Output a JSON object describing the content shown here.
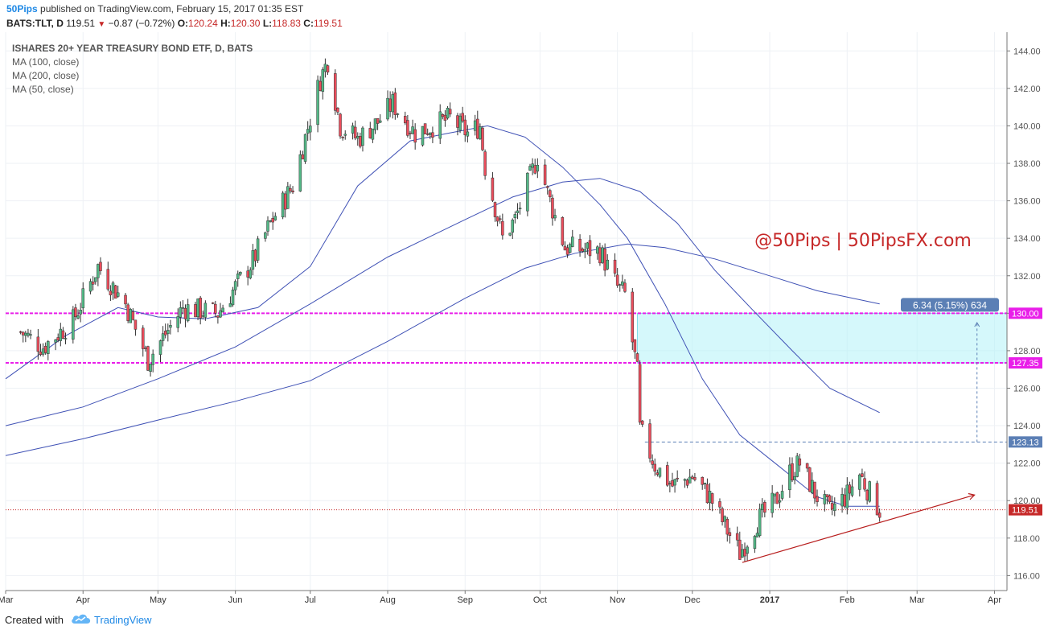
{
  "header": {
    "publisher": "50Pips",
    "published_text": " published on TradingView.com, February 15, 2017 01:35 EST",
    "symbol": "BATS:TLT, D",
    "last": "119.51",
    "change": "−0.87 (−0.72%)",
    "o_label": "O:",
    "o_value": "120.24",
    "h_label": "H:",
    "h_value": "120.30",
    "l_label": "L:",
    "l_value": "118.83",
    "c_label": "C:",
    "c_value": "119.51"
  },
  "legend": {
    "title": "ISHARES 20+ YEAR TREASURY BOND ETF, D, BATS",
    "indicators": [
      "MA (100, close)",
      "MA (200, close)",
      "MA (50, close)"
    ]
  },
  "watermark": "@50Pips | 50PipsFX.com",
  "footer": {
    "created_with": "Created with",
    "brand": "TradingView"
  },
  "colors": {
    "up": "#53b987",
    "down": "#eb4d5c",
    "ma": "#3f51b5",
    "level": "#e91ee9",
    "target_box": "#b2f2f7",
    "trendline": "#b71c1c",
    "current_price": "#c62828",
    "measure_label": "#5b7fb5",
    "watermark": "#c62828"
  },
  "chart_data": {
    "type": "candlestick",
    "symbol": "BATS:TLT",
    "timeframe": "D",
    "x_tick_labels": [
      "Mar",
      "Apr",
      "May",
      "Jun",
      "Jul",
      "Aug",
      "Sep",
      "Oct",
      "Nov",
      "Dec",
      "2017",
      "Feb",
      "Mar",
      "Apr"
    ],
    "y_tick_labels": [
      "116.00",
      "118.00",
      "120.00",
      "122.00",
      "124.00",
      "126.00",
      "128.00",
      "130.00",
      "132.00",
      "134.00",
      "136.00",
      "138.00",
      "140.00",
      "142.00",
      "144.00"
    ],
    "ylim": [
      115.2,
      145.0
    ],
    "price_path": [
      [
        "2016-03-07",
        129.0
      ],
      [
        "2016-03-16",
        128.2
      ],
      [
        "2016-03-28",
        129.6
      ],
      [
        "2016-04-07",
        132.5
      ],
      [
        "2016-04-18",
        130.5
      ],
      [
        "2016-04-27",
        127.5
      ],
      [
        "2016-05-11",
        130.3
      ],
      [
        "2016-05-25",
        130.0
      ],
      [
        "2016-06-08",
        132.8
      ],
      [
        "2016-06-15",
        134.8
      ],
      [
        "2016-06-24",
        136.8
      ],
      [
        "2016-07-05",
        142.5
      ],
      [
        "2016-07-08",
        143.5
      ],
      [
        "2016-07-13",
        140.0
      ],
      [
        "2016-07-20",
        139.3
      ],
      [
        "2016-07-28",
        140.2
      ],
      [
        "2016-08-03",
        141.2
      ],
      [
        "2016-08-12",
        139.6
      ],
      [
        "2016-08-19",
        140.0
      ],
      [
        "2016-08-26",
        140.4
      ],
      [
        "2016-09-02",
        139.6
      ],
      [
        "2016-09-07",
        140.0
      ],
      [
        "2016-09-09",
        137.8
      ],
      [
        "2016-09-13",
        135.7
      ],
      [
        "2016-09-16",
        134.0
      ],
      [
        "2016-09-21",
        135.0
      ],
      [
        "2016-09-28",
        137.6
      ],
      [
        "2016-09-30",
        138.4
      ],
      [
        "2016-10-04",
        136.4
      ],
      [
        "2016-10-11",
        133.5
      ],
      [
        "2016-10-18",
        133.4
      ],
      [
        "2016-10-25",
        133.3
      ],
      [
        "2016-11-01",
        131.4
      ],
      [
        "2016-11-04",
        131.0
      ],
      [
        "2016-11-09",
        126.8
      ],
      [
        "2016-11-10",
        123.8
      ],
      [
        "2016-11-16",
        121.9
      ],
      [
        "2016-11-23",
        120.8
      ],
      [
        "2016-12-01",
        121.3
      ],
      [
        "2016-12-08",
        120.2
      ],
      [
        "2016-12-15",
        118.4
      ],
      [
        "2016-12-20",
        117.2
      ],
      [
        "2016-12-27",
        118.9
      ],
      [
        "2017-01-03",
        119.9
      ],
      [
        "2017-01-09",
        121.5
      ],
      [
        "2017-01-13",
        122.0
      ],
      [
        "2017-01-19",
        120.4
      ],
      [
        "2017-01-25",
        119.4
      ],
      [
        "2017-02-01",
        120.3
      ],
      [
        "2017-02-06",
        121.4
      ],
      [
        "2017-02-10",
        120.4
      ],
      [
        "2017-02-14",
        119.51
      ]
    ],
    "moving_averages": [
      {
        "name": "MA (100, close)",
        "points": [
          [
            "2016-03-01",
            124.0
          ],
          [
            "2016-04-01",
            125.0
          ],
          [
            "2016-05-01",
            126.5
          ],
          [
            "2016-06-01",
            128.2
          ],
          [
            "2016-07-01",
            130.5
          ],
          [
            "2016-08-01",
            133.0
          ],
          [
            "2016-09-01",
            135.0
          ],
          [
            "2016-09-20",
            136.2
          ],
          [
            "2016-10-10",
            137.0
          ],
          [
            "2016-10-25",
            137.2
          ],
          [
            "2016-11-10",
            136.5
          ],
          [
            "2016-11-25",
            134.8
          ],
          [
            "2016-12-10",
            132.3
          ],
          [
            "2016-12-25",
            130.2
          ],
          [
            "2017-01-10",
            128.0
          ],
          [
            "2017-01-25",
            126.0
          ],
          [
            "2017-02-14",
            124.7
          ]
        ]
      },
      {
        "name": "MA (200, close)",
        "points": [
          [
            "2016-03-01",
            122.4
          ],
          [
            "2016-04-01",
            123.3
          ],
          [
            "2016-05-01",
            124.3
          ],
          [
            "2016-06-01",
            125.3
          ],
          [
            "2016-07-01",
            126.4
          ],
          [
            "2016-08-01",
            128.5
          ],
          [
            "2016-09-01",
            130.8
          ],
          [
            "2016-09-25",
            132.4
          ],
          [
            "2016-10-15",
            133.2
          ],
          [
            "2016-11-05",
            133.7
          ],
          [
            "2016-11-20",
            133.5
          ],
          [
            "2016-12-10",
            132.9
          ],
          [
            "2017-01-01",
            132.0
          ],
          [
            "2017-01-20",
            131.2
          ],
          [
            "2017-02-14",
            130.5
          ]
        ]
      },
      {
        "name": "MA (50, close)",
        "points": [
          [
            "2016-03-01",
            126.5
          ],
          [
            "2016-03-25",
            128.8
          ],
          [
            "2016-04-15",
            130.3
          ],
          [
            "2016-05-01",
            129.8
          ],
          [
            "2016-05-20",
            129.7
          ],
          [
            "2016-06-10",
            130.3
          ],
          [
            "2016-07-01",
            132.5
          ],
          [
            "2016-07-20",
            136.8
          ],
          [
            "2016-08-10",
            139.2
          ],
          [
            "2016-08-25",
            139.6
          ],
          [
            "2016-09-10",
            140.0
          ],
          [
            "2016-09-25",
            139.4
          ],
          [
            "2016-10-10",
            137.8
          ],
          [
            "2016-10-25",
            135.8
          ],
          [
            "2016-11-05",
            134.0
          ],
          [
            "2016-11-20",
            130.5
          ],
          [
            "2016-12-05",
            126.5
          ],
          [
            "2016-12-20",
            123.5
          ],
          [
            "2017-01-05",
            121.8
          ],
          [
            "2017-01-20",
            120.2
          ],
          [
            "2017-02-01",
            119.7
          ],
          [
            "2017-02-14",
            119.7
          ]
        ]
      }
    ],
    "levels": [
      {
        "label": "130.00",
        "value": 130.0
      },
      {
        "label": "127.35",
        "value": 127.35
      }
    ],
    "target_zone": {
      "from_date": "2016-11-09",
      "to_date": "2017-04-30",
      "low": 127.35,
      "high": 130.0
    },
    "measure": {
      "label": "6.34 (5.15%) 634",
      "date": "2017-03-25",
      "from": 123.13,
      "to": 129.5
    },
    "reference_line": {
      "label": "123.13",
      "value": 123.13,
      "from_date": "2016-11-12"
    },
    "current_price": {
      "label": "119.51",
      "value": 119.51
    },
    "trendline": {
      "from_date": "2016-12-21",
      "from_value": 116.7,
      "to_date": "2017-03-24",
      "to_value": 120.3
    }
  }
}
